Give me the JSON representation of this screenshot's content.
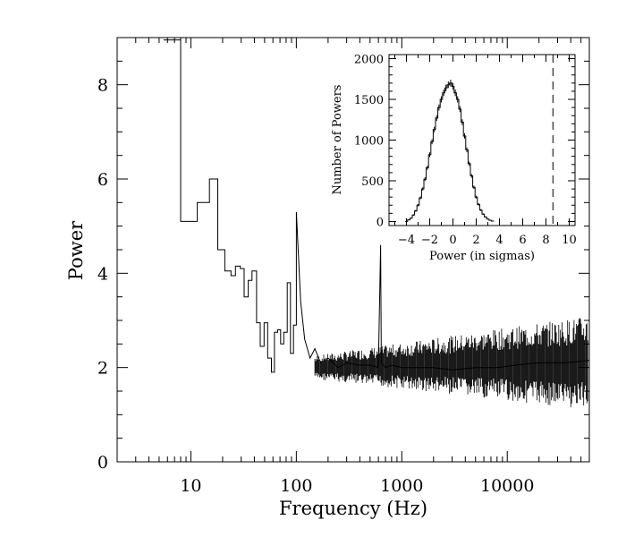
{
  "chart_data": [
    {
      "type": "line",
      "step": true,
      "xlabel": "Frequency (Hz)",
      "ylabel": "Power",
      "xscale": "log",
      "xlim": [
        2,
        60000
      ],
      "ylim": [
        0,
        9
      ],
      "x_tick_labels": [
        "10",
        "100",
        "1000",
        "10000"
      ],
      "x_tick_values": [
        10,
        100,
        1000,
        10000
      ],
      "y_tick_labels": [
        "0",
        "2",
        "4",
        "6",
        "8"
      ],
      "y_tick_values": [
        0,
        2,
        4,
        6,
        8
      ],
      "grid": false,
      "series": [
        {
          "description_of_shape": "power density spectrum",
          "x": [
            5.5,
            8.0,
            8.0,
            11.5,
            11.5,
            15.0,
            15.0,
            18.0,
            18.0,
            21.0,
            21.0,
            24.0,
            24.0,
            26.5,
            26.5,
            29.5,
            29.5,
            32.0,
            32.0,
            35.0,
            35.0,
            38.0,
            38.0,
            42.0,
            42.0,
            45.5,
            45.5,
            49.5,
            49.5,
            53.5,
            53.5,
            58.0,
            58.0,
            62.0,
            62.0,
            66.5,
            66.5,
            71.0,
            71.0,
            76.0,
            76.0,
            82.0,
            82.0,
            88.0,
            88.0,
            94.0,
            94.0,
            100.0,
            100.0,
            110.0,
            120.0,
            135.0,
            150.0,
            170.0,
            200.0,
            250.0,
            300.0,
            400.0,
            500.0,
            600.0,
            630.0,
            640.0,
            700.0,
            800.0,
            1000.0,
            1500.0,
            2000.0,
            3000.0,
            5000.0,
            8000.0,
            12000.0,
            20000.0,
            35000.0,
            60000.0
          ],
          "y": [
            8.95,
            8.95,
            5.1,
            5.1,
            5.5,
            5.5,
            6.0,
            6.0,
            4.5,
            4.5,
            4.05,
            4.05,
            3.95,
            3.95,
            4.15,
            4.15,
            4.1,
            4.1,
            3.5,
            3.5,
            3.85,
            3.85,
            4.05,
            4.05,
            2.95,
            2.95,
            2.45,
            2.45,
            2.95,
            2.95,
            2.2,
            2.2,
            1.9,
            1.9,
            2.75,
            2.75,
            2.8,
            2.8,
            2.5,
            2.5,
            2.75,
            2.75,
            3.8,
            3.8,
            2.3,
            2.3,
            2.9,
            2.9,
            5.3,
            3.4,
            2.6,
            2.2,
            2.4,
            2.1,
            2.2,
            2.0,
            2.1,
            2.05,
            2.05,
            2.0,
            4.6,
            2.1,
            2.0,
            2.05,
            2.0,
            2.0,
            2.0,
            1.95,
            2.0,
            2.0,
            2.05,
            2.1,
            2.1,
            2.15
          ]
        }
      ]
    },
    {
      "type": "bar",
      "subtype": "histogram",
      "xlabel": "Power (in sigmas)",
      "ylabel": "Number of Powers",
      "xlim": [
        -5.5,
        10.5
      ],
      "ylim": [
        -50,
        2050
      ],
      "x_tick_labels": [
        "−4",
        "−2",
        "0",
        "2",
        "4",
        "6",
        "8",
        "10"
      ],
      "x_tick_values": [
        -4,
        -2,
        0,
        2,
        4,
        6,
        8,
        10
      ],
      "y_tick_labels": [
        "0",
        "500",
        "1000",
        "1500",
        "2000"
      ],
      "y_tick_values": [
        0,
        500,
        1000,
        1500,
        2000
      ],
      "dashed_line_x": 8.6,
      "series": [
        {
          "bin_centers": [
            -4.0,
            -3.8,
            -3.6,
            -3.4,
            -3.2,
            -3.0,
            -2.8,
            -2.6,
            -2.4,
            -2.2,
            -2.0,
            -1.8,
            -1.6,
            -1.4,
            -1.2,
            -1.0,
            -0.8,
            -0.6,
            -0.4,
            -0.2,
            0.0,
            0.2,
            0.4,
            0.6,
            0.8,
            1.0,
            1.2,
            1.4,
            1.6,
            1.8,
            2.0,
            2.2,
            2.4,
            2.6,
            2.8,
            3.0,
            3.2,
            3.4
          ],
          "counts": [
            0,
            20,
            40,
            80,
            130,
            200,
            290,
            400,
            520,
            660,
            820,
            980,
            1130,
            1270,
            1400,
            1500,
            1580,
            1640,
            1680,
            1700,
            1660,
            1580,
            1500,
            1380,
            1220,
            1050,
            880,
            710,
            560,
            420,
            300,
            210,
            140,
            90,
            55,
            30,
            15,
            5
          ]
        }
      ]
    }
  ]
}
